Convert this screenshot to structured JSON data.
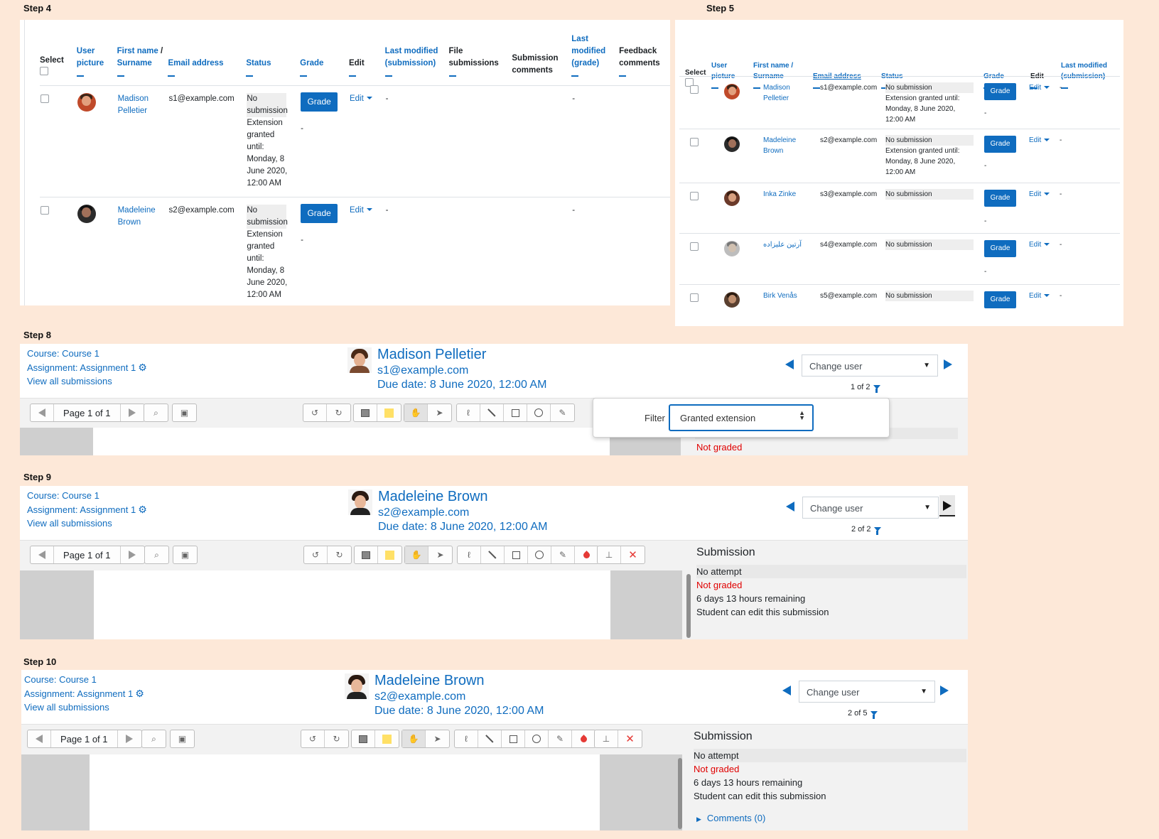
{
  "steps": {
    "s4": "Step 4",
    "s5": "Step 5",
    "s8": "Step 8",
    "s9": "Step 9",
    "s10": "Step 10"
  },
  "table4": {
    "headers": {
      "select": "Select",
      "user_picture": "User picture",
      "first_name": "First name",
      "slash": " / ",
      "surname": "Surname",
      "email": "Email address",
      "status": "Status",
      "grade": "Grade",
      "edit": "Edit",
      "last_modified_sub": "Last modified (submission)",
      "file_submissions": "File submissions",
      "submission_comments": "Submission comments",
      "last_modified_grade": "Last modified (grade)",
      "feedback_comments": "Feedback comments"
    },
    "rows": [
      {
        "name": "Madison Pelletier",
        "email": "s1@example.com",
        "status": "No submission",
        "extension": "Extension granted until: Monday, 8 June 2020, 12:00 AM",
        "grade_button": "Grade",
        "edit": "Edit",
        "grade_dash": "-",
        "lm_sub": "-",
        "lm_grade": "-"
      },
      {
        "name": "Madeleine Brown",
        "email": "s2@example.com",
        "status": "No submission",
        "extension": "Extension granted until: Monday, 8 June 2020, 12:00 AM",
        "grade_button": "Grade",
        "edit": "Edit",
        "grade_dash": "-",
        "lm_sub": "-",
        "lm_grade": "-"
      }
    ]
  },
  "table5": {
    "headers": {
      "select": "Select",
      "user_picture": "User picture",
      "first_name": "First name / Surname",
      "email": "Email address",
      "status": "Status",
      "grade": "Grade",
      "edit": "Edit",
      "last_modified_sub": "Last modified (submission)"
    },
    "rows": [
      {
        "name": "Madison Pelletier",
        "email": "s1@example.com",
        "status": "No submission",
        "extension": "Extension granted until: Monday, 8 June 2020, 12:00 AM",
        "grade_button": "Grade",
        "edit": "Edit",
        "dash": "-",
        "grade_dash": "-"
      },
      {
        "name": "Madeleine Brown",
        "email": "s2@example.com",
        "status": "No submission",
        "extension": "Extension granted until: Monday, 8 June 2020, 12:00 AM",
        "grade_button": "Grade",
        "edit": "Edit",
        "dash": "-",
        "grade_dash": "-"
      },
      {
        "name": "Inka Zinke",
        "email": "s3@example.com",
        "status": "No submission",
        "extension": "",
        "grade_button": "Grade",
        "edit": "Edit",
        "dash": "-",
        "grade_dash": "-"
      },
      {
        "name": "آرتین علیزاده",
        "email": "s4@example.com",
        "status": "No submission",
        "extension": "",
        "grade_button": "Grade",
        "edit": "Edit",
        "dash": "-",
        "grade_dash": "-"
      },
      {
        "name": "Birk Venås",
        "email": "s5@example.com",
        "status": "No submission",
        "extension": "",
        "grade_button": "Grade",
        "edit": "Edit",
        "dash": "-",
        "grade_dash": ""
      }
    ]
  },
  "grader_common": {
    "course": "Course: Course 1",
    "assignment": "Assignment: Assignment 1",
    "view_all": "View all submissions",
    "due": "Due date: 8 June 2020, 12:00 AM",
    "change_user": "Change user",
    "page": "Page 1 of 1"
  },
  "g8": {
    "name": "Madison Pelletier",
    "email": "s1@example.com",
    "counter": "1 of 2",
    "filter_label": "Filter",
    "filter_value": "Granted extension",
    "not_graded": "Not graded"
  },
  "g9": {
    "name": "Madeleine Brown",
    "email": "s2@example.com",
    "counter": "2 of 2",
    "submission": "Submission",
    "no_attempt": "No attempt",
    "not_graded": "Not graded",
    "remaining": "6 days 13 hours remaining",
    "can_edit": "Student can edit this submission"
  },
  "g10": {
    "name": "Madeleine Brown",
    "email": "s2@example.com",
    "counter": "2 of 5",
    "submission": "Submission",
    "no_attempt": "No attempt",
    "not_graded": "Not graded",
    "remaining": "6 days 13 hours remaining",
    "can_edit": "Student can edit this submission",
    "comments": "Comments (0)"
  },
  "icons": {
    "gear": "gear-icon",
    "filter": "filter-icon",
    "prev": "prev-user-icon",
    "next": "next-user-icon"
  },
  "colors": {
    "background": "#fde8d8",
    "link": "#0f6cbf",
    "button": "#0f6cbf",
    "not_graded": "#e00000"
  }
}
